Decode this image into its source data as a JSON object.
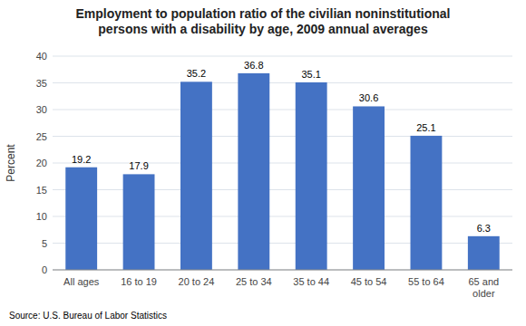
{
  "chart_data": {
    "type": "bar",
    "title": "Employment to population ratio of the civilian noninstitutional\npersons with a disability by age, 2009 annual averages",
    "categories": [
      "All ages",
      "16 to 19",
      "20 to 24",
      "25 to 34",
      "35 to 44",
      "45 to 54",
      "55 to 64",
      "65 and\nolder"
    ],
    "values": [
      19.2,
      17.9,
      35.2,
      36.8,
      35.1,
      30.6,
      25.1,
      6.3
    ],
    "color": "#4472C4",
    "ylabel": "Percent",
    "ylim": [
      0,
      40
    ],
    "yticks": [
      0,
      5,
      10,
      15,
      20,
      25,
      30,
      35,
      40
    ],
    "grid": true,
    "data_labels": true,
    "source": "Source: U.S. Bureau of Labor Statistics"
  }
}
